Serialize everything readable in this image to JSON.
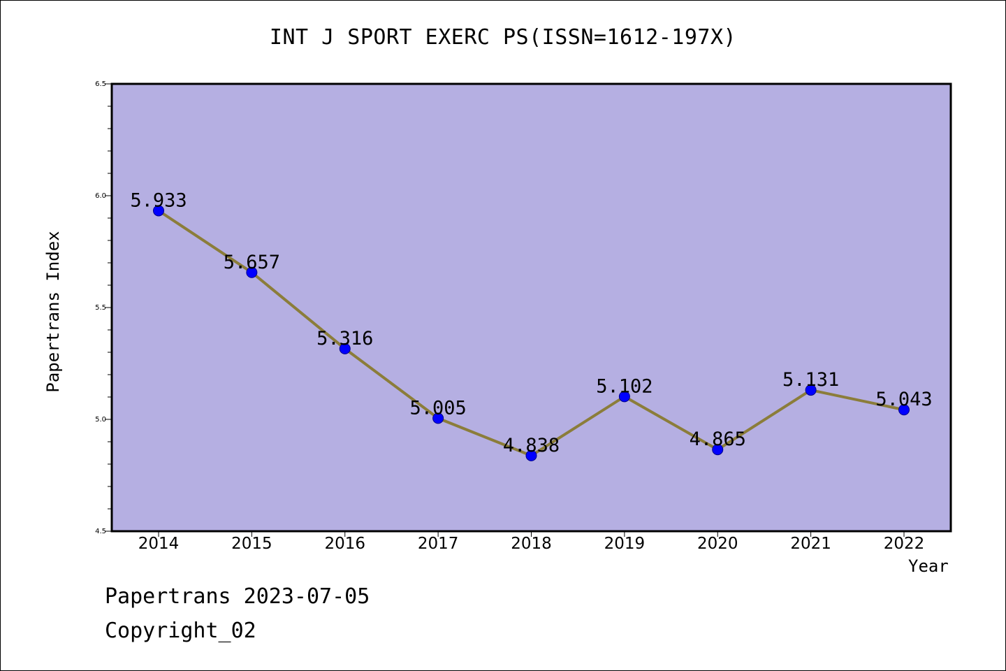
{
  "colors": {
    "plot_background": "#b5afe2",
    "line": "#8b7d3a",
    "marker_fill": "#0000ff",
    "marker_stroke": "#00008b",
    "axis": "#000000"
  },
  "footer": {
    "date_text": "Papertrans 2023-07-05",
    "copyright_text": "Copyright_02"
  },
  "chart_data": {
    "type": "line",
    "title": "INT J SPORT EXERC PS(ISSN=1612-197X)",
    "xlabel": "Year",
    "ylabel": "Papertrans Index",
    "x": [
      "2014",
      "2015",
      "2016",
      "2017",
      "2018",
      "2019",
      "2020",
      "2021",
      "2022"
    ],
    "series": [
      {
        "values": [
          5.933,
          5.657,
          5.316,
          5.005,
          4.838,
          5.102,
          4.865,
          5.131,
          5.043
        ],
        "labels": [
          "5.933",
          "5.657",
          "5.316",
          "5.005",
          "4.838",
          "5.102",
          "4.865",
          "5.131",
          "5.043"
        ]
      }
    ],
    "ylim": [
      4.5,
      6.5
    ],
    "yticks": [
      "4.5",
      "5.0",
      "5.5",
      "6.0",
      "6.5"
    ],
    "grid": false,
    "legend": "none"
  }
}
